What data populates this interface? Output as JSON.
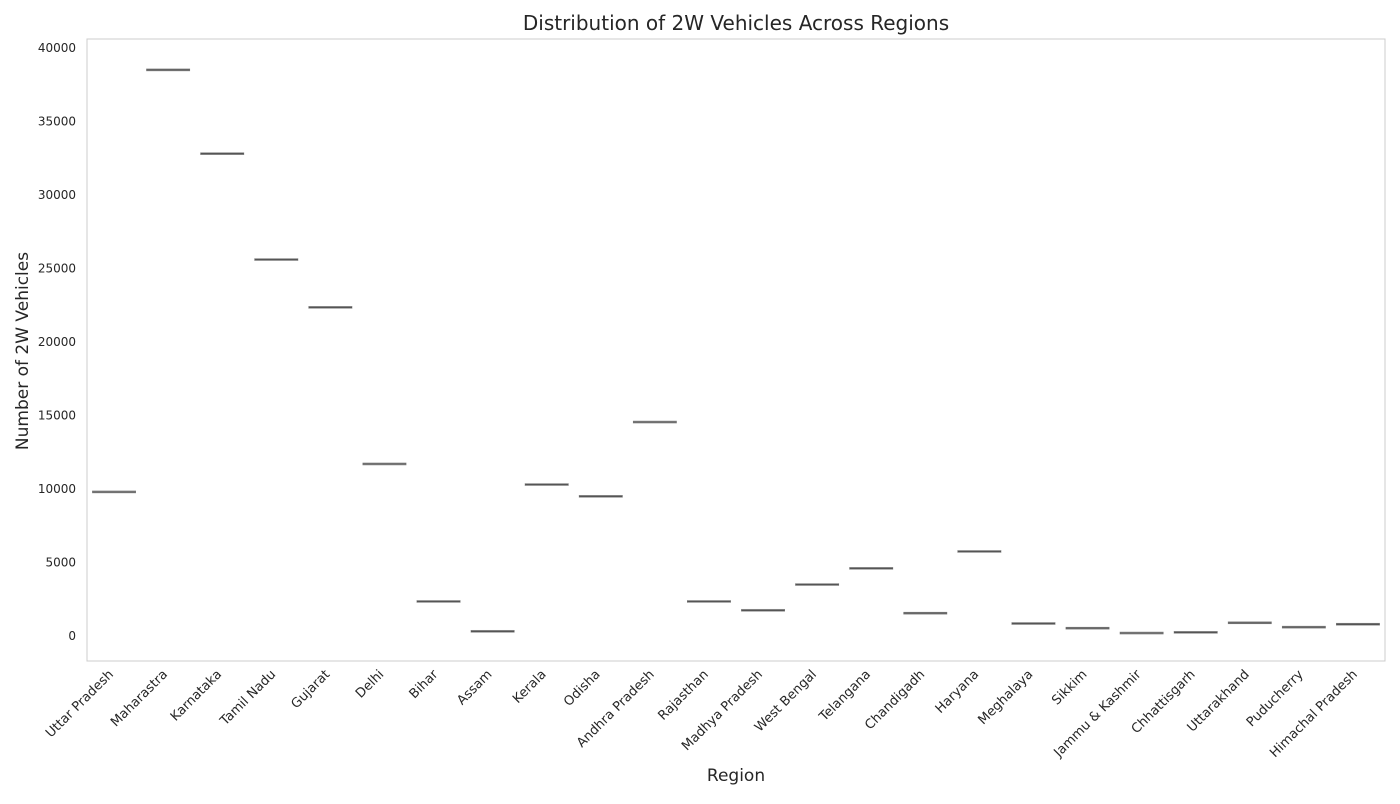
{
  "chart_data": {
    "type": "box",
    "title": "Distribution of 2W Vehicles Across Regions",
    "xlabel": "Region",
    "ylabel": "Number of 2W Vehicles",
    "ylim": [
      -1700,
      40600
    ],
    "yticks": [
      0,
      5000,
      10000,
      15000,
      20000,
      25000,
      30000,
      35000,
      40000
    ],
    "ytick_labels": [
      "0",
      "5000",
      "10000",
      "15000",
      "20000",
      "25000",
      "30000",
      "35000",
      "40000"
    ],
    "grid": false,
    "categories": [
      "Uttar Pradesh",
      "Maharastra",
      "Karnataka",
      "Tamil Nadu",
      "Gujarat",
      "Delhi",
      "Bihar",
      "Assam",
      "Kerala",
      "Odisha",
      "Andhra Pradesh",
      "Rajasthan",
      "Madhya Pradesh",
      "West Bengal",
      "Telangana",
      "Chandigadh",
      "Haryana",
      "Meghalaya",
      "Sikkim",
      "Jammu & Kashmir",
      "Chhattisgarh",
      "Uttarakhand",
      "Puducherry",
      "Himachal Pradesh"
    ],
    "values": [
      9800,
      38500,
      32800,
      25600,
      22350,
      11700,
      2350,
      320,
      10300,
      9500,
      14550,
      2350,
      1750,
      3500,
      4600,
      1550,
      5750,
      850,
      530,
      200,
      250,
      900,
      600,
      800
    ],
    "colors": {
      "median": "#555555",
      "axes": "#cccccc",
      "text": "#262626"
    }
  }
}
